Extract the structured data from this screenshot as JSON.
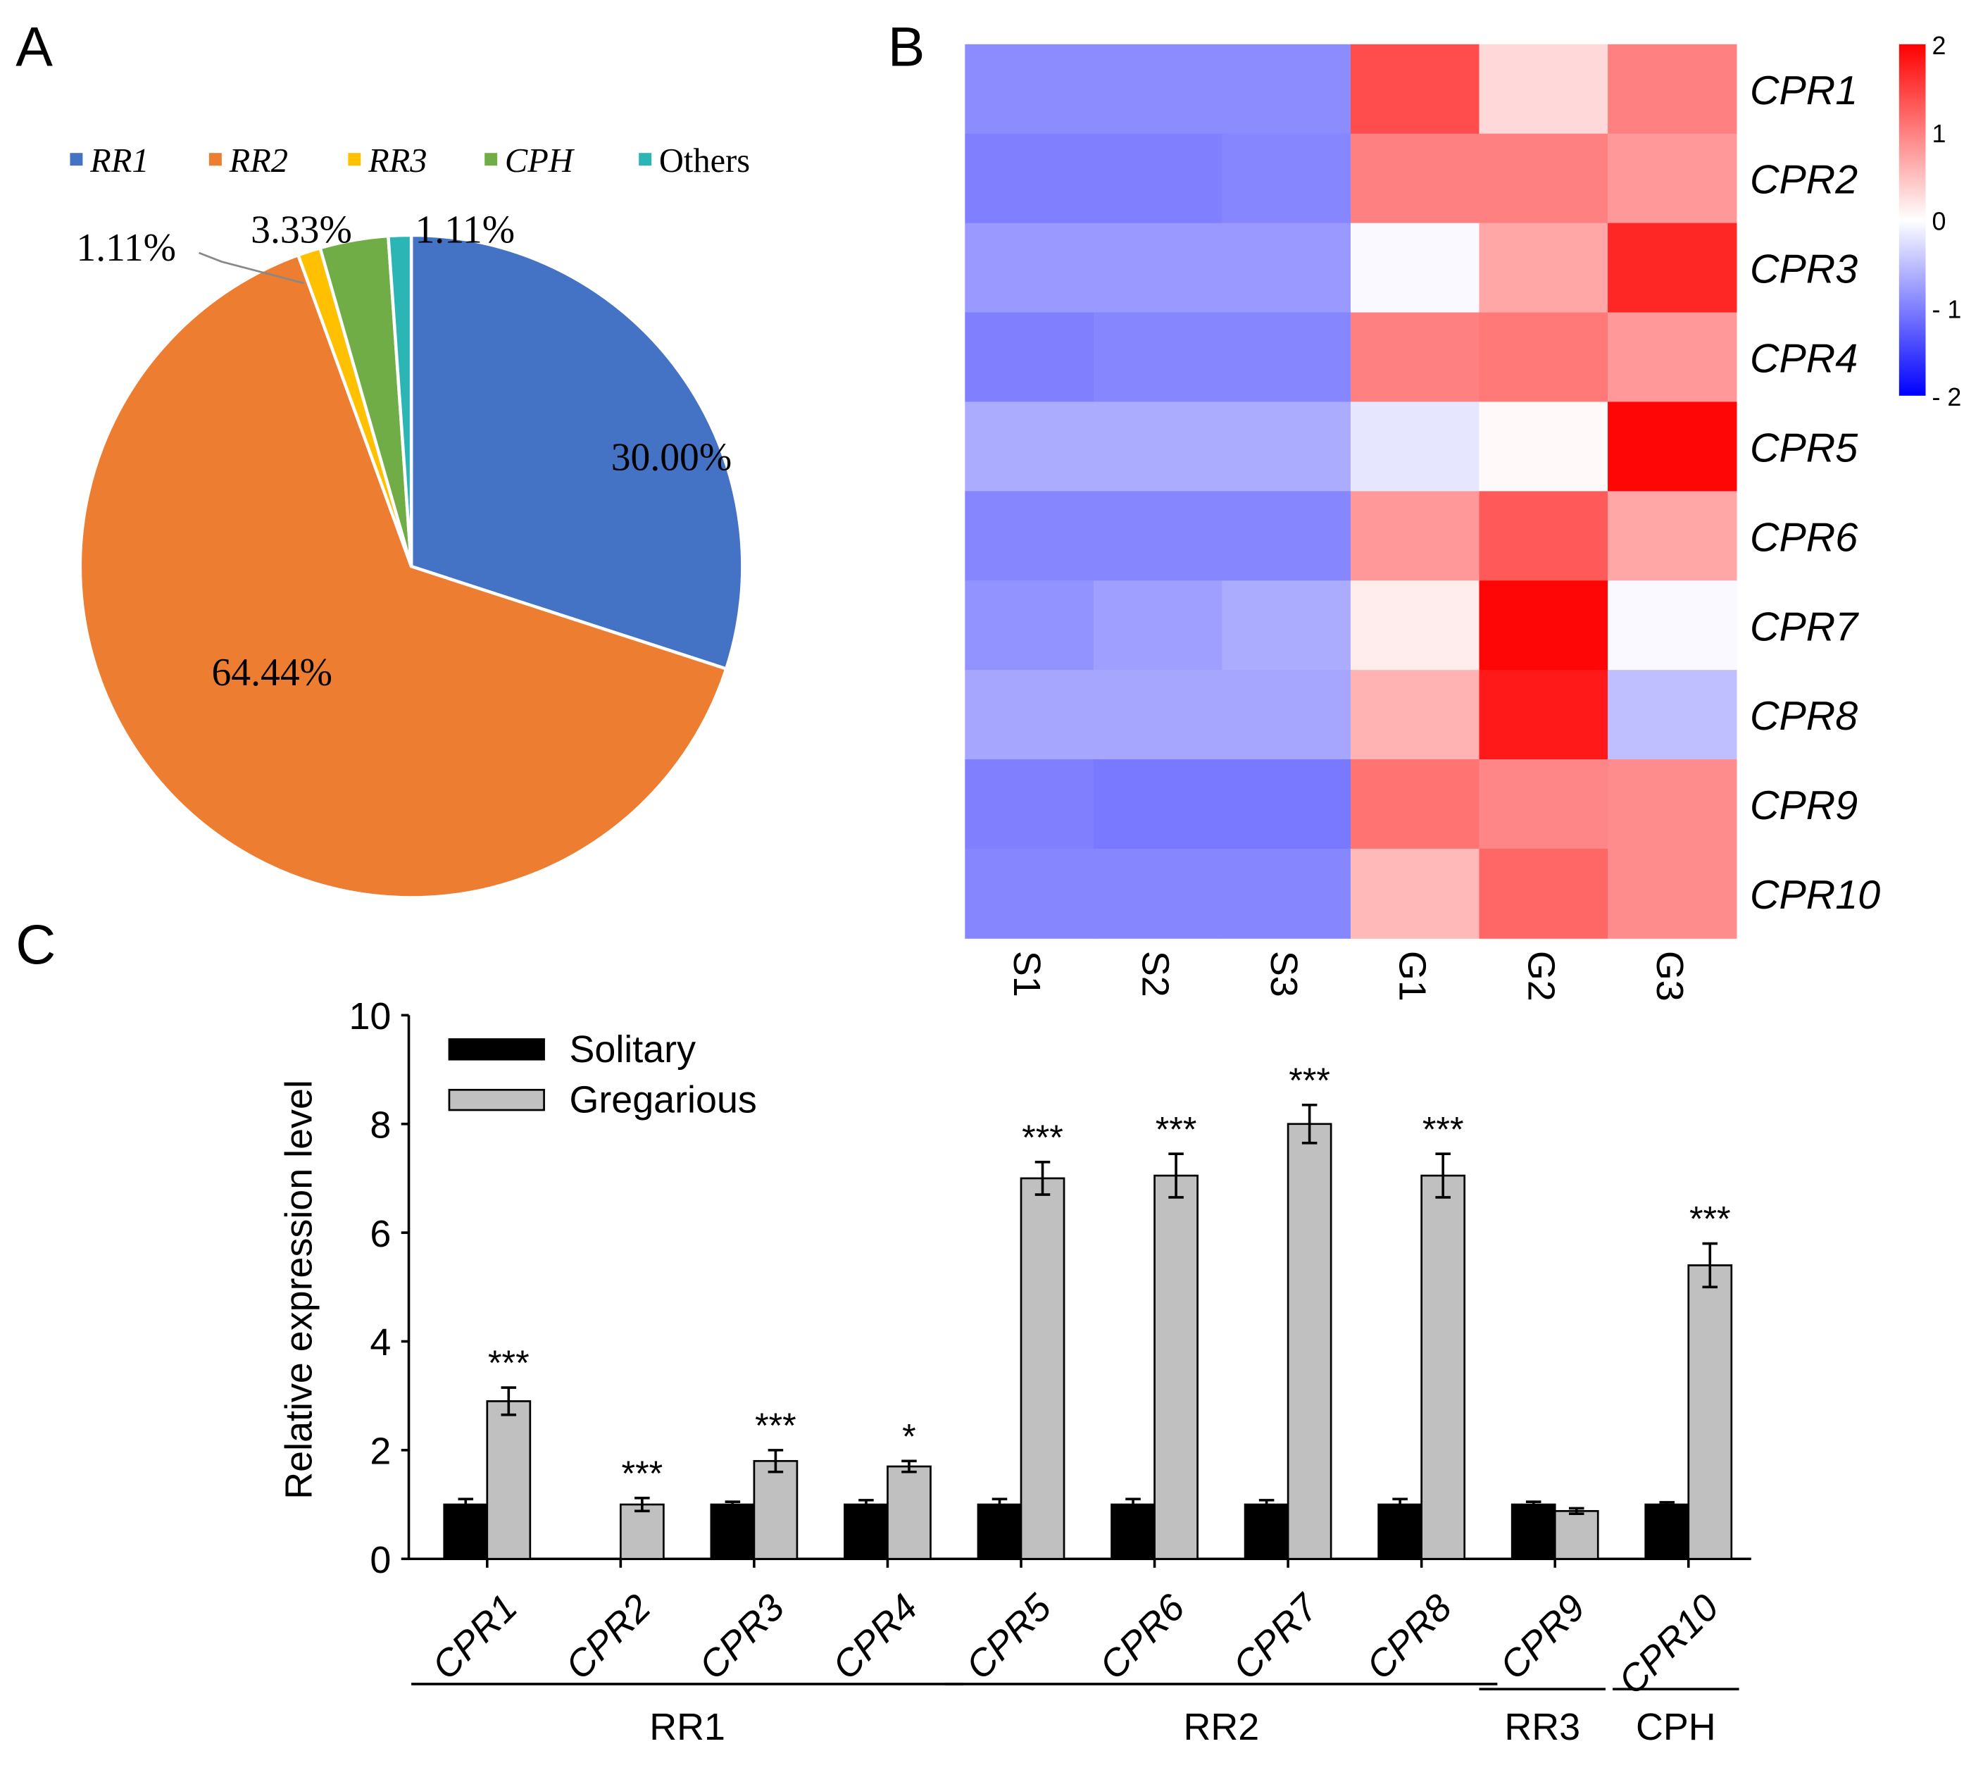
{
  "panels": {
    "a": "A",
    "b": "B",
    "c": "C"
  },
  "chart_data": [
    {
      "type": "pie",
      "panel": "A",
      "legend_position": "top",
      "labels": [
        "RR1",
        "RR2",
        "RR3",
        "CPH",
        "Others"
      ],
      "values": [
        30.0,
        64.44,
        1.11,
        3.33,
        1.11
      ],
      "value_labels": [
        "30.00%",
        "64.44%",
        "1.11%",
        "3.33%",
        "1.11%"
      ],
      "colors": [
        "#4472C4",
        "#ED7D31",
        "#FFC000",
        "#70AD47",
        "#2CB5B5"
      ]
    },
    {
      "type": "heatmap",
      "panel": "B",
      "columns": [
        "S1",
        "S2",
        "S3",
        "G1",
        "G2",
        "G3"
      ],
      "rows": [
        "CPR1",
        "CPR2",
        "CPR3",
        "CPR4",
        "CPR5",
        "CPR6",
        "CPR7",
        "CPR8",
        "CPR9",
        "CPR10"
      ],
      "values": [
        [
          -0.9,
          -0.9,
          -0.9,
          1.4,
          0.3,
          1.0
        ],
        [
          -1.0,
          -1.0,
          -0.95,
          1.0,
          1.0,
          0.8
        ],
        [
          -0.8,
          -0.8,
          -0.8,
          -0.05,
          0.7,
          1.7
        ],
        [
          -1.0,
          -0.95,
          -0.95,
          1.0,
          1.05,
          0.8
        ],
        [
          -0.65,
          -0.65,
          -0.65,
          -0.2,
          0.05,
          1.95
        ],
        [
          -0.95,
          -0.95,
          -0.95,
          0.8,
          1.3,
          0.7
        ],
        [
          -0.85,
          -0.75,
          -0.65,
          0.15,
          1.95,
          -0.05
        ],
        [
          -0.7,
          -0.7,
          -0.7,
          0.6,
          1.8,
          -0.5
        ],
        [
          -1.0,
          -1.05,
          -1.05,
          1.1,
          0.95,
          0.9
        ],
        [
          -0.95,
          -0.95,
          -0.95,
          0.55,
          1.2,
          0.9
        ]
      ],
      "colorbar": {
        "range": [
          -2,
          2
        ],
        "ticks": [
          "2",
          "1",
          "0",
          "- 1",
          "- 2"
        ],
        "low": "#0000FF",
        "mid": "#FFFFFF",
        "high": "#FF0000"
      }
    },
    {
      "type": "bar",
      "panel": "C",
      "categories": [
        "CPR1",
        "CPR2",
        "CPR3",
        "CPR4",
        "CPR5",
        "CPR6",
        "CPR7",
        "CPR8",
        "CPR9",
        "CPR10"
      ],
      "series": [
        {
          "name": "Solitary",
          "color": "#000000",
          "values": [
            1.0,
            null,
            1.0,
            1.0,
            1.0,
            1.0,
            1.0,
            1.0,
            1.0,
            1.0
          ],
          "errors": [
            0.1,
            null,
            0.05,
            0.08,
            0.1,
            0.1,
            0.08,
            0.1,
            0.05,
            0.04
          ]
        },
        {
          "name": "Gregarious",
          "color": "#C0C0C0",
          "values": [
            2.9,
            1.0,
            1.8,
            1.7,
            7.0,
            7.05,
            8.0,
            7.05,
            0.88,
            5.4
          ],
          "errors": [
            0.25,
            0.12,
            0.2,
            0.1,
            0.3,
            0.4,
            0.35,
            0.4,
            0.05,
            0.4
          ]
        }
      ],
      "significance": [
        "***",
        "***",
        "***",
        "*",
        "***",
        "***",
        "***",
        "***",
        "",
        "***"
      ],
      "ylabel": "Relative expression level",
      "ylim": [
        0,
        10
      ],
      "yticks": [
        "0",
        "2",
        "4",
        "6",
        "8",
        "10"
      ],
      "groups": [
        {
          "label": "RR1",
          "from": 0,
          "to": 3
        },
        {
          "label": "RR2",
          "from": 4,
          "to": 7
        },
        {
          "label": "RR3",
          "from": 8,
          "to": 8
        },
        {
          "label": "CPH",
          "from": 9,
          "to": 9
        }
      ],
      "legend_position": "top-left"
    }
  ]
}
